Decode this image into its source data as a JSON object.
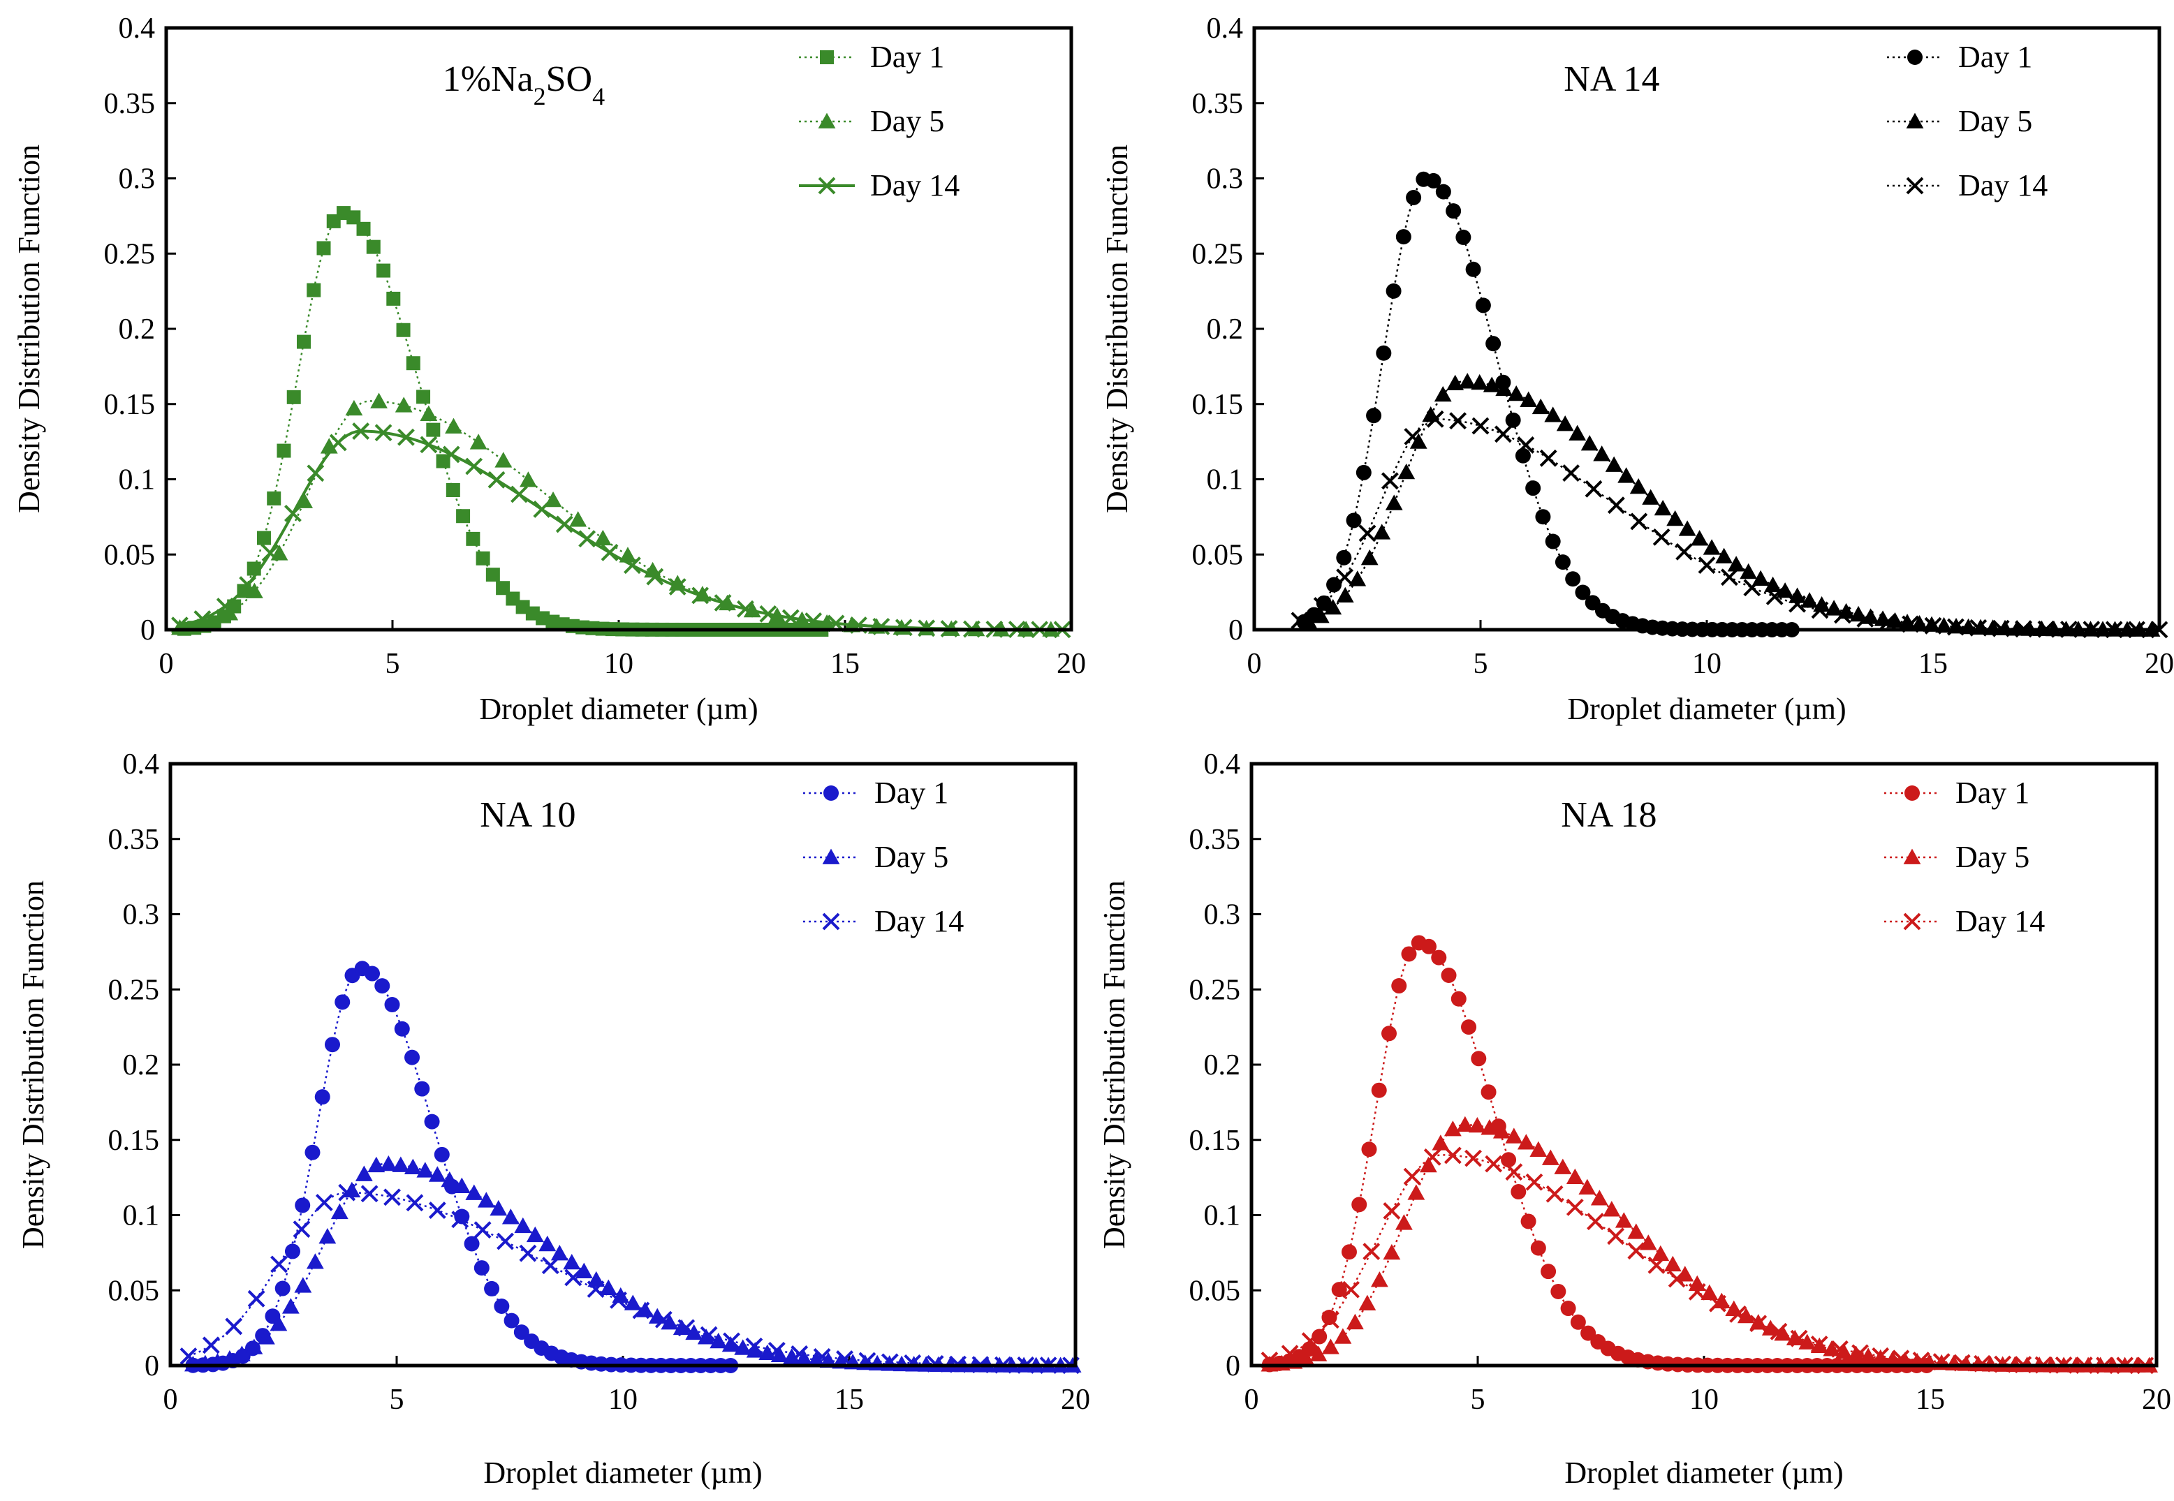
{
  "chart_data": [
    {
      "type": "scatter",
      "title": "1%Na2SO4",
      "title_parts": {
        "prefix": "1%Na",
        "sub1": "2",
        "mid": "SO",
        "sub2": "4"
      },
      "xlabel": "Droplet diameter (µm)",
      "ylabel": "Density Distribution Function",
      "xlim": [
        0,
        20
      ],
      "ylim": [
        0,
        0.4
      ],
      "xticks": [
        "0",
        "5",
        "10",
        "15",
        "20"
      ],
      "yticks": [
        "0",
        "0.05",
        "0.1",
        "0.15",
        "0.2",
        "0.25",
        "0.3",
        "0.35",
        "0.4"
      ],
      "grid": false,
      "legend_position": "top-right",
      "color": "#3a8a2a",
      "series": [
        {
          "name": "Day 1",
          "marker": "square",
          "line": "dotted",
          "peak": 3.9,
          "max": 0.277,
          "sl": 1.0,
          "sr": 1.65,
          "ends": [
            0.4,
            14.5
          ],
          "step": 0.22
        },
        {
          "name": "Day 5",
          "marker": "triangle",
          "line": "dotted",
          "peak": 4.5,
          "max": 0.152,
          "sl": 1.35,
          "sr": 3.8,
          "ends": [
            0.3,
            20
          ],
          "step": 0.55
        },
        {
          "name": "Day 14",
          "marker": "x",
          "line": "solid",
          "peak": 4.3,
          "max": 0.132,
          "sl": 1.45,
          "sr": 4.0,
          "ends": [
            0.3,
            20
          ],
          "step": 0.5
        }
      ]
    },
    {
      "type": "scatter",
      "title": "NA 14",
      "xlabel": "Droplet diameter (µm)",
      "ylabel": "Density Distribution Function",
      "xlim": [
        0,
        20
      ],
      "ylim": [
        0,
        0.4
      ],
      "xticks": [
        "0",
        "5",
        "10",
        "15",
        "20"
      ],
      "yticks": [
        "0",
        "0.05",
        "0.1",
        "0.15",
        "0.2",
        "0.25",
        "0.3",
        "0.35",
        "0.4"
      ],
      "grid": false,
      "legend_position": "top-right",
      "color": "#000000",
      "series": [
        {
          "name": "Day 1",
          "marker": "circle",
          "line": "dotted",
          "peak": 3.8,
          "max": 0.3,
          "sl": 0.95,
          "sr": 1.55,
          "ends": [
            1.1,
            12
          ],
          "step": 0.22
        },
        {
          "name": "Day 5",
          "marker": "triangle",
          "line": "dotted",
          "peak": 4.6,
          "max": 0.165,
          "sl": 1.3,
          "sr": 3.7,
          "ends": [
            1.2,
            20
          ],
          "step": 0.27
        },
        {
          "name": "Day 14",
          "marker": "x",
          "line": "dotted",
          "peak": 4.0,
          "max": 0.14,
          "sl": 1.2,
          "sr": 3.9,
          "ends": [
            1.0,
            20
          ],
          "step": 0.5
        }
      ]
    },
    {
      "type": "scatter",
      "title": "NA 10",
      "xlabel": "Droplet diameter (µm)",
      "ylabel": "Density Distribution Function",
      "xlim": [
        0,
        20
      ],
      "ylim": [
        0,
        0.4
      ],
      "xticks": [
        "0",
        "5",
        "10",
        "15",
        "20"
      ],
      "yticks": [
        "0",
        "0.05",
        "0.1",
        "0.15",
        "0.2",
        "0.25",
        "0.3",
        "0.35",
        "0.4"
      ],
      "grid": false,
      "legend_position": "top-right",
      "color": "#1a1acc",
      "series": [
        {
          "name": "Day 1",
          "marker": "circle",
          "line": "dotted",
          "peak": 4.2,
          "max": 0.264,
          "sl": 0.95,
          "sr": 1.6,
          "ends": [
            0.5,
            12.5
          ],
          "step": 0.22
        },
        {
          "name": "Day 5",
          "marker": "triangle",
          "line": "dotted",
          "peak": 4.7,
          "max": 0.134,
          "sl": 1.3,
          "sr": 3.6,
          "ends": [
            0.5,
            20
          ],
          "step": 0.27
        },
        {
          "name": "Day 14",
          "marker": "x",
          "line": "dotted",
          "peak": 3.9,
          "max": 0.115,
          "sl": 1.45,
          "sr": 4.3,
          "ends": [
            0.4,
            20
          ],
          "step": 0.5
        }
      ]
    },
    {
      "type": "scatter",
      "title": "NA 18",
      "xlabel": "Droplet diameter (µm)",
      "ylabel": "Density Distribution Function",
      "xlim": [
        0,
        20
      ],
      "ylim": [
        0,
        0.4
      ],
      "xticks": [
        "0",
        "5",
        "10",
        "15",
        "20"
      ],
      "yticks": [
        "0",
        "0.05",
        "0.1",
        "0.15",
        "0.2",
        "0.25",
        "0.3",
        "0.35",
        "0.4"
      ],
      "grid": false,
      "legend_position": "top-right",
      "color": "#cc1a1a",
      "series": [
        {
          "name": "Day 1",
          "marker": "circle",
          "line": "dotted",
          "peak": 3.7,
          "max": 0.281,
          "sl": 0.95,
          "sr": 1.65,
          "ends": [
            0.4,
            15
          ],
          "step": 0.22
        },
        {
          "name": "Day 5",
          "marker": "triangle",
          "line": "dotted",
          "peak": 4.7,
          "max": 0.16,
          "sl": 1.3,
          "sr": 3.5,
          "ends": [
            0.4,
            20
          ],
          "step": 0.27
        },
        {
          "name": "Day 14",
          "marker": "x",
          "line": "dotted",
          "peak": 4.2,
          "max": 0.14,
          "sl": 1.4,
          "sr": 3.9,
          "ends": [
            0.4,
            20
          ],
          "step": 0.45
        }
      ]
    }
  ]
}
